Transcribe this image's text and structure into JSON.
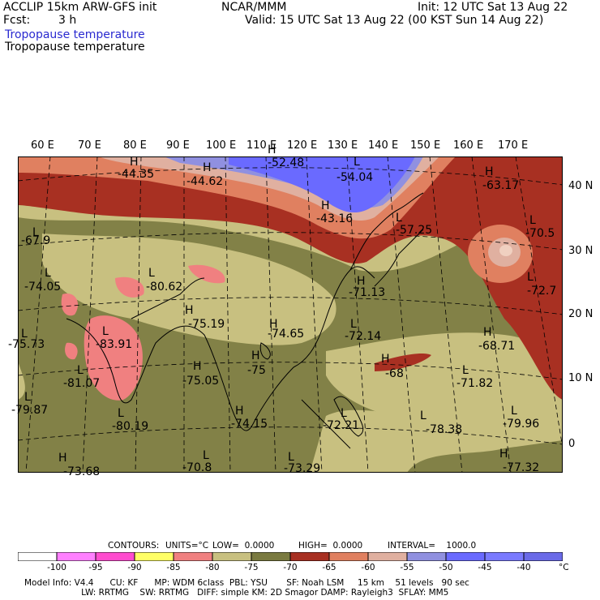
{
  "header": {
    "model_line": "ACCLIP 15km ARW-GFS init",
    "fcst_label": "Fcst:",
    "fcst_value": "3 h",
    "center": "NCAR/MMM",
    "init": "Init: 12 UTC Sat 13 Aug 22",
    "valid": "Valid: 15 UTC Sat 13 Aug 22 (00 KST Sun 14 Aug 22)",
    "field_shaded": "Tropopause temperature",
    "field_contour": "Tropopause temperature"
  },
  "map": {
    "lon_labels": [
      "60 E",
      "70 E",
      "80 E",
      "90 E",
      "100 E",
      "110 E",
      "120 E",
      "130 E",
      "140 E",
      "150 E",
      "160 E",
      "170 E"
    ],
    "lat_labels": [
      "40 N",
      "30 N",
      "20 N",
      "10 N",
      "0"
    ],
    "markers": [
      {
        "type": "H",
        "value": "-44.35"
      },
      {
        "type": "H",
        "value": "-44.62"
      },
      {
        "type": "H",
        "value": "-52.48"
      },
      {
        "type": "L",
        "value": "-54.04"
      },
      {
        "type": "H",
        "value": "-43.16"
      },
      {
        "type": "L",
        "value": "-57.25"
      },
      {
        "type": "H",
        "value": "-63.17"
      },
      {
        "type": "L",
        "value": "-70.5"
      },
      {
        "type": "L",
        "value": "-67.9"
      },
      {
        "type": "L",
        "value": "-74.05"
      },
      {
        "type": "L",
        "value": "-80.62"
      },
      {
        "type": "H",
        "value": "-71.13"
      },
      {
        "type": "L",
        "value": "-72.7"
      },
      {
        "type": "H",
        "value": "-75.19"
      },
      {
        "type": "H",
        "value": "-74.65"
      },
      {
        "type": "L",
        "value": "-72.14"
      },
      {
        "type": "L",
        "value": "-83.91"
      },
      {
        "type": "H",
        "value": "-68.71"
      },
      {
        "type": "L",
        "value": "-75.73"
      },
      {
        "type": "H",
        "value": "-75.05"
      },
      {
        "type": "H",
        "value": "-75"
      },
      {
        "type": "H",
        "value": "-68"
      },
      {
        "type": "L",
        "value": "-81.07"
      },
      {
        "type": "L",
        "value": "-71.82"
      },
      {
        "type": "L",
        "value": "-79.87"
      },
      {
        "type": "L",
        "value": "-80.19"
      },
      {
        "type": "H",
        "value": "-74.15"
      },
      {
        "type": "L",
        "value": "-72.21"
      },
      {
        "type": "L",
        "value": "-78.38"
      },
      {
        "type": "L",
        "value": "-79.96"
      },
      {
        "type": "H",
        "value": "-73.68"
      },
      {
        "type": "L",
        "value": "-70.8"
      },
      {
        "type": "L",
        "value": "-73.29"
      },
      {
        "type": "H",
        "value": "-77.32"
      }
    ]
  },
  "contour_info": {
    "contours": "CONTOURS:",
    "units": "UNITS=°C",
    "low": "LOW=  0.0000",
    "high": "HIGH=  0.0000",
    "interval": "INTERVAL=    1000.0"
  },
  "colorbar": {
    "colors": [
      "#ffffff",
      "#ff80ff",
      "#ff4ccf",
      "#ffff66",
      "#f08080",
      "#c8c080",
      "#7a7a40",
      "#a83022",
      "#e08060",
      "#e0b0a0",
      "#9090e0",
      "#6a6aff",
      "#7a7aff",
      "#6a6ae8"
    ],
    "ticks": [
      "-100",
      "-95",
      "-90",
      "-85",
      "-80",
      "-75",
      "-70",
      "-65",
      "-60",
      "-55",
      "-50",
      "-45",
      "-40"
    ],
    "unit": "°C"
  },
  "footer": {
    "line1": "Model Info: V4.4      CU: KF      MP: WDM 6class  PBL: YSU       SF: Noah LSM     15 km    51 levels   90 sec",
    "line2": "                     LW: RRTMG    SW: RRTMG   DIFF: simple KM: 2D Smagor DAMP: Rayleigh3  SFLAY: MM5"
  }
}
